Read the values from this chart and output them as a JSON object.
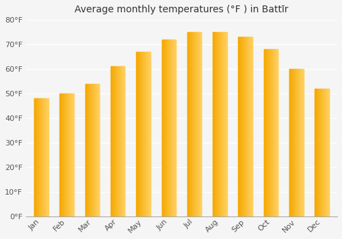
{
  "title": "Average monthly temperatures (°F ) in Battīr",
  "months": [
    "Jan",
    "Feb",
    "Mar",
    "Apr",
    "May",
    "Jun",
    "Jul",
    "Aug",
    "Sep",
    "Oct",
    "Nov",
    "Dec"
  ],
  "values": [
    48,
    50,
    54,
    61,
    67,
    72,
    75,
    75,
    73,
    68,
    60,
    52
  ],
  "bar_color_left": "#F5A800",
  "bar_color_right": "#FFD060",
  "ylim": [
    0,
    80
  ],
  "yticks": [
    0,
    10,
    20,
    30,
    40,
    50,
    60,
    70,
    80
  ],
  "background_color": "#F5F5F5",
  "plot_bg_color": "#F5F5F5",
  "grid_color": "#FFFFFF",
  "title_fontsize": 10,
  "tick_fontsize": 8,
  "bar_width": 0.55
}
